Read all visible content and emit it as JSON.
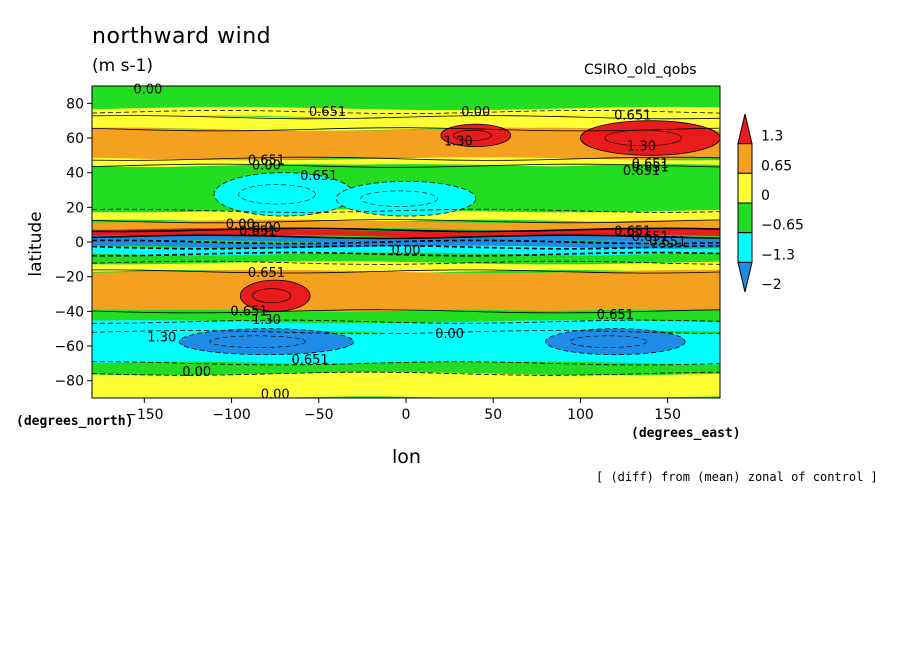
{
  "chart_data": {
    "type": "heatmap",
    "title": "northward wind",
    "units": "(m s-1)",
    "model": "CSIRO_old_qobs",
    "xlabel": "lon",
    "ylabel": "latitude",
    "xunit": "(degrees_east)",
    "yunit": "(degrees_north)",
    "footnote": "[ (diff) from (mean) zonal of control ]",
    "xlim": [
      -180,
      180
    ],
    "ylim": [
      -90,
      90
    ],
    "xticks": [
      -150,
      -100,
      -50,
      0,
      50,
      100,
      150
    ],
    "yticks": [
      80,
      60,
      40,
      20,
      0,
      -20,
      -40,
      -60,
      -80
    ],
    "colorbar": {
      "labels": [
        "1.3",
        "0.65",
        "0",
        "−0.65",
        "−1.3",
        "−2"
      ],
      "colors": [
        "#e81c1c",
        "#f4a020",
        "#ffff33",
        "#22dd22",
        "#00ffff",
        "#1e8ce6"
      ]
    },
    "contour_labels": [
      "0.00",
      "0.651",
      "0.00",
      "0.651",
      "1.30",
      "1.30",
      "0.651",
      "0.00",
      "0.651",
      "0.651",
      "0.651",
      "0.651",
      "0.00",
      "0.00",
      "0.651",
      "0.651",
      "0.651",
      "0.651",
      "0.00",
      "0.651",
      "0.651",
      "1.30",
      "1.30",
      "0.00",
      "0.651",
      "0.651",
      "0.00",
      "0.00"
    ],
    "bands": [
      {
        "lat": [
          75,
          90
        ],
        "value": -0.3
      },
      {
        "lat": [
          72,
          77
        ],
        "value": 0.3
      },
      {
        "lat": [
          65,
          72
        ],
        "value": 0.4
      },
      {
        "lat": [
          48,
          65
        ],
        "value": 0.9
      },
      {
        "lat": [
          44,
          48
        ],
        "value": 0.3
      },
      {
        "lat": [
          18,
          44
        ],
        "value": -0.4
      },
      {
        "lat": [
          12,
          18
        ],
        "value": 0.3
      },
      {
        "lat": [
          7,
          12
        ],
        "value": 0.9
      },
      {
        "lat": [
          3,
          7
        ],
        "value": 1.5
      },
      {
        "lat": [
          0,
          3
        ],
        "value": -2.5
      },
      {
        "lat": [
          -3,
          0
        ],
        "value": -1.6
      },
      {
        "lat": [
          -7,
          -3
        ],
        "value": -0.9
      },
      {
        "lat": [
          -12,
          -7
        ],
        "value": -0.3
      },
      {
        "lat": [
          -17,
          -12
        ],
        "value": 0.3
      },
      {
        "lat": [
          -40,
          -17
        ],
        "value": 0.9
      },
      {
        "lat": [
          -46,
          -40
        ],
        "value": -0.3
      },
      {
        "lat": [
          -52,
          -46
        ],
        "value": -0.9
      },
      {
        "lat": [
          -70,
          -52
        ],
        "value": -1.1
      },
      {
        "lat": [
          -76,
          -70
        ],
        "value": -0.3
      },
      {
        "lat": [
          -90,
          -76
        ],
        "value": 0.3
      }
    ],
    "blobs": [
      {
        "lon": [
          20,
          60
        ],
        "lat": [
          55,
          68
        ],
        "value": 1.6
      },
      {
        "lon": [
          100,
          180
        ],
        "lat": [
          50,
          70
        ],
        "value": 1.6
      },
      {
        "lon": [
          -110,
          -30
        ],
        "lat": [
          15,
          40
        ],
        "value": -1.0
      },
      {
        "lon": [
          -40,
          40
        ],
        "lat": [
          15,
          35
        ],
        "value": -1.0
      },
      {
        "lon": [
          -95,
          -55
        ],
        "lat": [
          -40,
          -22
        ],
        "value": 1.6
      },
      {
        "lon": [
          -130,
          -30
        ],
        "lat": [
          -65,
          -50
        ],
        "value": -1.6
      },
      {
        "lon": [
          80,
          160
        ],
        "lat": [
          -65,
          -50
        ],
        "value": -1.6
      }
    ]
  }
}
